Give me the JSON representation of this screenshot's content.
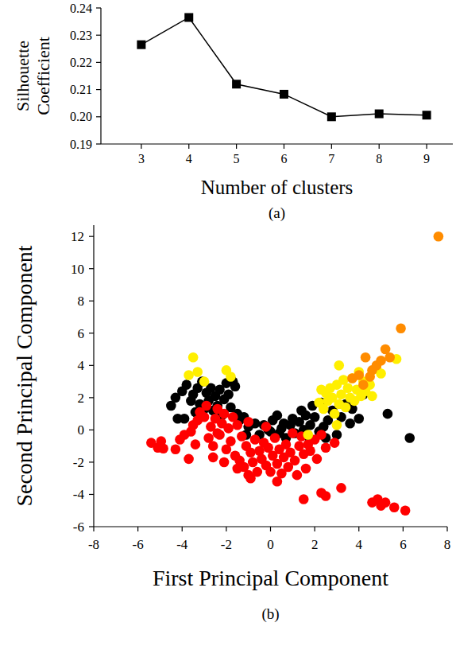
{
  "chart_data": [
    {
      "type": "line",
      "panel_label": "(a)",
      "x_label": "Number of clusters",
      "y_label": "Silhouette Coefficient",
      "x": [
        3,
        4,
        5,
        6,
        7,
        8,
        9
      ],
      "values": [
        0.2265,
        0.2365,
        0.212,
        0.2083,
        0.2,
        0.2011,
        0.2006
      ],
      "xlim": [
        2.15,
        9.55
      ],
      "xticks": [
        3,
        4,
        5,
        6,
        7,
        8,
        9
      ],
      "ylim": [
        0.19,
        0.24
      ],
      "yticks": [
        0.19,
        {
          "value": 0.2,
          "label": "0.20"
        },
        0.21,
        0.22,
        0.23,
        0.24
      ],
      "color": "#000000",
      "marker": "square",
      "line_style": "solid"
    },
    {
      "type": "scatter",
      "panel_label": "(b)",
      "x_label": "First Principal Component",
      "y_label": "Second Principal Component",
      "xlim": [
        -8,
        8
      ],
      "xticks": [
        -8,
        -6,
        -4,
        -2,
        0,
        2,
        4,
        6,
        8
      ],
      "ylim": [
        -6,
        12.7
      ],
      "yticks": [
        -6,
        -4,
        -2,
        0,
        2,
        4,
        6,
        8,
        10,
        12
      ],
      "marker": "circle",
      "series": [
        {
          "color": "#000000",
          "x": [
            -4.5,
            -4.3,
            -4.0,
            -3.9,
            -3.8,
            -3.6,
            -3.5,
            -3.4,
            -3.3,
            -3.2,
            -3.1,
            -3.0,
            -2.9,
            -2.8,
            -2.7,
            -2.6,
            -2.5,
            -2.4,
            -2.3,
            -2.2,
            -2.1,
            -1.9,
            -1.8,
            -1.7,
            -1.6,
            -1.5,
            -1.4,
            -1.2,
            -1.0,
            -0.7,
            -0.5,
            -0.3,
            -0.1,
            0.1,
            0.3,
            0.4,
            0.5,
            0.7,
            0.9,
            1.0,
            1.1,
            1.3,
            1.4,
            1.5,
            1.6,
            1.7,
            1.8,
            1.9,
            2.0,
            2.2,
            2.3,
            2.4,
            2.6,
            2.8,
            3.0,
            3.2,
            3.4,
            3.6,
            4.0,
            4.2,
            5.3,
            6.3,
            0.0,
            0.6,
            -1.1,
            2.5,
            3.7,
            -4.2,
            -2.0
          ],
          "values": [
            1.5,
            2.0,
            2.4,
            0.7,
            2.8,
            1.8,
            2.2,
            1.1,
            2.6,
            1.6,
            3.0,
            1.3,
            2.3,
            1.8,
            2.6,
            1.2,
            2.1,
            1.5,
            2.5,
            0.9,
            1.9,
            2.2,
            1.4,
            3.0,
            2.7,
            1.0,
            0.6,
            0.8,
            0.2,
            0.4,
            -0.3,
            0.3,
            0.0,
            0.6,
            0.9,
            -0.2,
            0.1,
            -0.5,
            0.3,
            0.7,
            -0.2,
            0.5,
            1.2,
            0.0,
            0.9,
            -0.4,
            0.3,
            1.5,
            0.8,
            -0.1,
            1.7,
            0.2,
            0.6,
            1.2,
            -0.3,
            0.8,
            1.6,
            0.4,
            0.7,
            2.2,
            1.0,
            -0.5,
            -0.1,
            0.4,
            -0.3,
            -0.5,
            1.3,
            0.7,
            2.9
          ]
        },
        {
          "color": "#ff0000",
          "x": [
            -5.4,
            -5.1,
            -4.95,
            -4.85,
            -4.3,
            -4.1,
            -3.9,
            -3.6,
            -3.5,
            -3.3,
            -3.2,
            -3.0,
            -2.9,
            -2.8,
            -2.7,
            -2.6,
            -2.5,
            -2.4,
            -2.3,
            -2.2,
            -2.1,
            -2.0,
            -1.9,
            -1.8,
            -1.7,
            -1.6,
            -1.5,
            -1.4,
            -1.3,
            -1.2,
            -1.1,
            -1.0,
            -0.9,
            -0.8,
            -0.7,
            -0.6,
            -0.5,
            -0.4,
            -0.3,
            -0.2,
            -0.1,
            0.0,
            0.1,
            0.2,
            0.3,
            0.4,
            0.5,
            0.6,
            0.7,
            0.8,
            0.9,
            1.0,
            1.1,
            1.2,
            1.3,
            1.4,
            1.5,
            1.6,
            1.7,
            1.8,
            2.0,
            2.1,
            2.3,
            2.5,
            -2.6,
            -3.4,
            -2.1,
            -1.5,
            -0.9,
            0.3,
            1.5,
            2.3,
            2.5,
            3.2,
            2.9,
            4.6,
            4.85,
            5.0,
            5.2,
            5.6,
            6.1,
            -0.2,
            -1.0,
            -2.4,
            -3.7
          ],
          "values": [
            -0.8,
            -1.1,
            -0.7,
            -1.15,
            -1.2,
            -0.6,
            -0.3,
            -0.1,
            0.3,
            0.6,
            1.1,
            0.8,
            1.5,
            -0.5,
            0.2,
            -1.0,
            0.7,
            1.3,
            -0.3,
            0.4,
            1.0,
            -1.2,
            0.1,
            -0.7,
            0.8,
            -1.6,
            0.3,
            -1.9,
            -0.4,
            -2.3,
            -1.0,
            -2.8,
            -1.4,
            -2.0,
            -0.6,
            -2.6,
            -1.3,
            -1.8,
            -0.8,
            -2.2,
            -1.1,
            -2.6,
            -1.6,
            -0.5,
            -2.1,
            -1.2,
            -2.7,
            -1.7,
            -0.9,
            -2.3,
            -1.4,
            -0.2,
            -1.9,
            -2.8,
            -1.0,
            -0.4,
            -1.5,
            -2.4,
            -0.9,
            -1.3,
            -0.6,
            -1.8,
            -0.3,
            -1.1,
            -1.7,
            -0.9,
            -2.0,
            -2.4,
            -3.0,
            -3.2,
            -4.3,
            -3.9,
            -4.1,
            -3.6,
            -0.8,
            -4.5,
            -4.3,
            -4.7,
            -4.5,
            -4.8,
            -5.0,
            0.2,
            0.5,
            -0.2,
            -1.8
          ]
        },
        {
          "color": "#ffef00",
          "x": [
            -3.5,
            -3.3,
            -3.0,
            -3.7,
            -2.0,
            -1.8,
            1.7,
            2.2,
            2.4,
            2.5,
            2.6,
            2.7,
            2.8,
            2.9,
            3.0,
            3.1,
            3.2,
            3.3,
            3.4,
            3.5,
            3.6,
            3.7,
            3.8,
            3.9,
            4.0,
            4.1,
            4.2,
            4.3,
            4.5,
            4.6,
            4.8,
            5.0,
            5.7,
            3.1,
            2.3,
            3.0
          ],
          "values": [
            4.5,
            3.6,
            3.0,
            3.4,
            3.7,
            3.3,
            -0.3,
            1.7,
            1.3,
            2.3,
            1.8,
            2.6,
            2.0,
            1.0,
            2.8,
            1.6,
            2.2,
            3.1,
            1.4,
            2.6,
            2.0,
            3.2,
            1.8,
            2.5,
            3.6,
            2.1,
            3.0,
            2.4,
            2.8,
            2.1,
            3.8,
            3.5,
            4.4,
            4.0,
            2.5,
            0.3
          ]
        },
        {
          "color": "#ff8c00",
          "x": [
            3.7,
            4.0,
            4.2,
            4.3,
            4.6,
            4.8,
            5.0,
            5.2,
            5.4,
            5.9,
            7.6,
            4.5
          ],
          "values": [
            3.2,
            3.4,
            2.8,
            4.5,
            3.7,
            4.0,
            4.3,
            5.0,
            4.5,
            6.3,
            12.0,
            3.3
          ]
        }
      ]
    }
  ]
}
